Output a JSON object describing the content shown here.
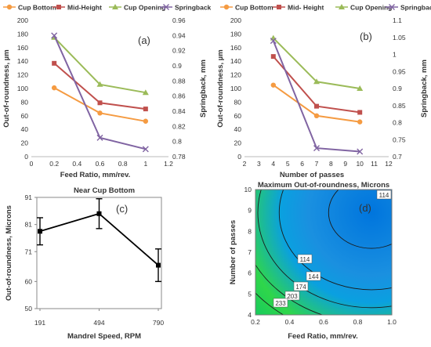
{
  "chart_data": [
    {
      "type": "line",
      "panel_label": "(a)",
      "xlabel": "Feed Ratio, mm/rev.",
      "ylabel": "Out-of-roundness, µm",
      "y2label": "Springback, mm",
      "xlim": [
        0,
        1.2
      ],
      "xticks": [
        "0",
        "0.2",
        "0.4",
        "0.6",
        "0.8",
        "1",
        "1.2"
      ],
      "ylim": [
        0,
        200
      ],
      "yticks": [
        "0",
        "20",
        "40",
        "60",
        "80",
        "100",
        "120",
        "140",
        "160",
        "180",
        "200"
      ],
      "y2lim": [
        0.78,
        0.96
      ],
      "y2ticks": [
        "0.78",
        "0.8",
        "0.82",
        "0.84",
        "0.86",
        "0.88",
        "0.9",
        "0.92",
        "0.94",
        "0.96"
      ],
      "legend_position": "top",
      "series": [
        {
          "name": "Cup Bottom",
          "color": "#f59b42",
          "marker": "circle",
          "axis": "left",
          "x": [
            0.2,
            0.6,
            1.0
          ],
          "y": [
            101,
            64,
            52
          ]
        },
        {
          "name": "Mid-Height",
          "color": "#c0504d",
          "marker": "square",
          "axis": "left",
          "x": [
            0.2,
            0.6,
            1.0
          ],
          "y": [
            137,
            79,
            70
          ]
        },
        {
          "name": "Cup Opening",
          "color": "#9bbb59",
          "marker": "triangle",
          "axis": "left",
          "x": [
            0.2,
            0.6,
            1.0
          ],
          "y": [
            175,
            106,
            94
          ]
        },
        {
          "name": "Springback",
          "color": "#8064a2",
          "marker": "cross",
          "axis": "right",
          "x": [
            0.2,
            0.6,
            1.0
          ],
          "y": [
            0.94,
            0.805,
            0.79
          ]
        }
      ]
    },
    {
      "type": "line",
      "panel_label": "(b)",
      "xlabel": "Number of passes",
      "ylabel": "Out-of-roundness, µm",
      "y2label": "Springback, mm",
      "xlim": [
        2,
        12
      ],
      "xticks": [
        "2",
        "3",
        "4",
        "5",
        "6",
        "7",
        "8",
        "9",
        "10",
        "11",
        "12"
      ],
      "ylim": [
        0,
        200
      ],
      "yticks": [
        "0",
        "20",
        "40",
        "60",
        "80",
        "100",
        "120",
        "140",
        "160",
        "180",
        "200"
      ],
      "y2lim": [
        0.7,
        1.1
      ],
      "y2ticks": [
        "0.7",
        "0.75",
        "0.8",
        "0.85",
        "0.9",
        "0.95",
        "1",
        "1.05",
        "1.1"
      ],
      "legend_position": "top",
      "series": [
        {
          "name": "Cup Bottom",
          "color": "#f59b42",
          "marker": "circle",
          "axis": "left",
          "x": [
            4,
            7,
            10
          ],
          "y": [
            105,
            60,
            51
          ]
        },
        {
          "name": "Mid- Height",
          "color": "#c0504d",
          "marker": "square",
          "axis": "left",
          "x": [
            4,
            7,
            10
          ],
          "y": [
            147,
            74,
            65
          ]
        },
        {
          "name": "Cup Opening",
          "color": "#9bbb59",
          "marker": "triangle",
          "axis": "left",
          "x": [
            4,
            7,
            10
          ],
          "y": [
            174,
            110,
            100
          ]
        },
        {
          "name": "Springback",
          "color": "#8064a2",
          "marker": "cross",
          "axis": "right",
          "x": [
            4,
            7,
            10
          ],
          "y": [
            1.04,
            0.725,
            0.715
          ]
        }
      ]
    },
    {
      "type": "line",
      "panel_label": "(c)",
      "title": "Near Cup Bottom",
      "xlabel": "Mandrel Speed, RPM",
      "ylabel": "Out-of-roundness, Microns",
      "categories": [
        "191",
        "494",
        "790"
      ],
      "ylim": [
        50,
        91
      ],
      "yticks": [
        "50",
        "60",
        "71",
        "81",
        "91"
      ],
      "color": "#000000",
      "series": [
        {
          "values": [
            78.5,
            85,
            66
          ],
          "err_low": [
            73.5,
            79.5,
            60
          ],
          "err_high": [
            83.5,
            90.5,
            72
          ]
        }
      ]
    },
    {
      "type": "heatmap",
      "panel_label": "(d)",
      "title": "Maximum Out-of-roundness, Microns",
      "xlabel": "Feed Ratio, mm/rev.",
      "ylabel": "Number of passes",
      "xlim": [
        0.2,
        1.0
      ],
      "xticks": [
        "0.2",
        "0.4",
        "0.6",
        "0.8",
        "1.0"
      ],
      "ylim": [
        4,
        10
      ],
      "yticks": [
        "4",
        "5",
        "6",
        "7",
        "8",
        "9",
        "10"
      ],
      "colormap": [
        "#00c070",
        "#2fd64a",
        "#0aa0e0",
        "#1a90e0",
        "#0075dd"
      ],
      "optimum": {
        "x": 0.88,
        "y": 8.9
      },
      "contour_labels": [
        "114",
        "114",
        "144",
        "174",
        "203",
        "233"
      ]
    }
  ]
}
